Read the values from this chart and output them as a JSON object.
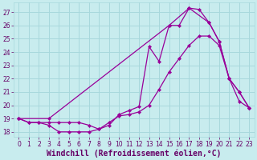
{
  "bg_color": "#c8ecee",
  "grid_color": "#a8d8dc",
  "line_color": "#990099",
  "marker_color": "#990099",
  "xlabel": "Windchill (Refroidissement éolien,°C)",
  "xlim": [
    -0.5,
    23.5
  ],
  "ylim": [
    17.6,
    27.7
  ],
  "yticks": [
    18,
    19,
    20,
    21,
    22,
    23,
    24,
    25,
    26,
    27
  ],
  "xticks": [
    0,
    1,
    2,
    3,
    4,
    5,
    6,
    7,
    8,
    9,
    10,
    11,
    12,
    13,
    14,
    15,
    16,
    17,
    18,
    19,
    20,
    21,
    22,
    23
  ],
  "curve1_x": [
    0,
    1,
    2,
    3,
    4,
    5,
    6,
    7,
    8,
    9,
    10,
    11,
    12,
    13,
    14,
    15,
    16,
    17,
    18,
    19,
    20,
    21,
    22,
    23
  ],
  "curve1_y": [
    19.0,
    18.7,
    18.7,
    18.5,
    18.0,
    18.0,
    18.0,
    18.0,
    18.2,
    18.5,
    19.3,
    19.6,
    19.9,
    24.4,
    23.3,
    26.0,
    26.0,
    27.3,
    27.2,
    26.2,
    24.8,
    22.0,
    21.0,
    19.8
  ],
  "curve2_x": [
    0,
    1,
    2,
    3,
    4,
    5,
    6,
    7,
    8,
    9,
    10,
    11,
    12,
    13,
    14,
    15,
    16,
    17,
    18,
    19,
    20,
    21,
    22,
    23
  ],
  "curve2_y": [
    19.0,
    18.7,
    18.7,
    18.7,
    18.7,
    18.7,
    18.7,
    18.5,
    18.2,
    18.7,
    19.2,
    19.3,
    19.5,
    20.0,
    21.2,
    22.5,
    23.5,
    24.5,
    25.2,
    25.2,
    24.5,
    22.0,
    20.3,
    19.8
  ],
  "curve3_x": [
    0,
    3,
    15,
    17,
    19,
    20,
    21,
    22,
    23
  ],
  "curve3_y": [
    19.0,
    19.0,
    26.0,
    27.3,
    26.2,
    24.8,
    22.0,
    21.0,
    19.8
  ],
  "font_color": "#660066",
  "tick_fontsize": 5.5,
  "label_fontsize": 7.0
}
